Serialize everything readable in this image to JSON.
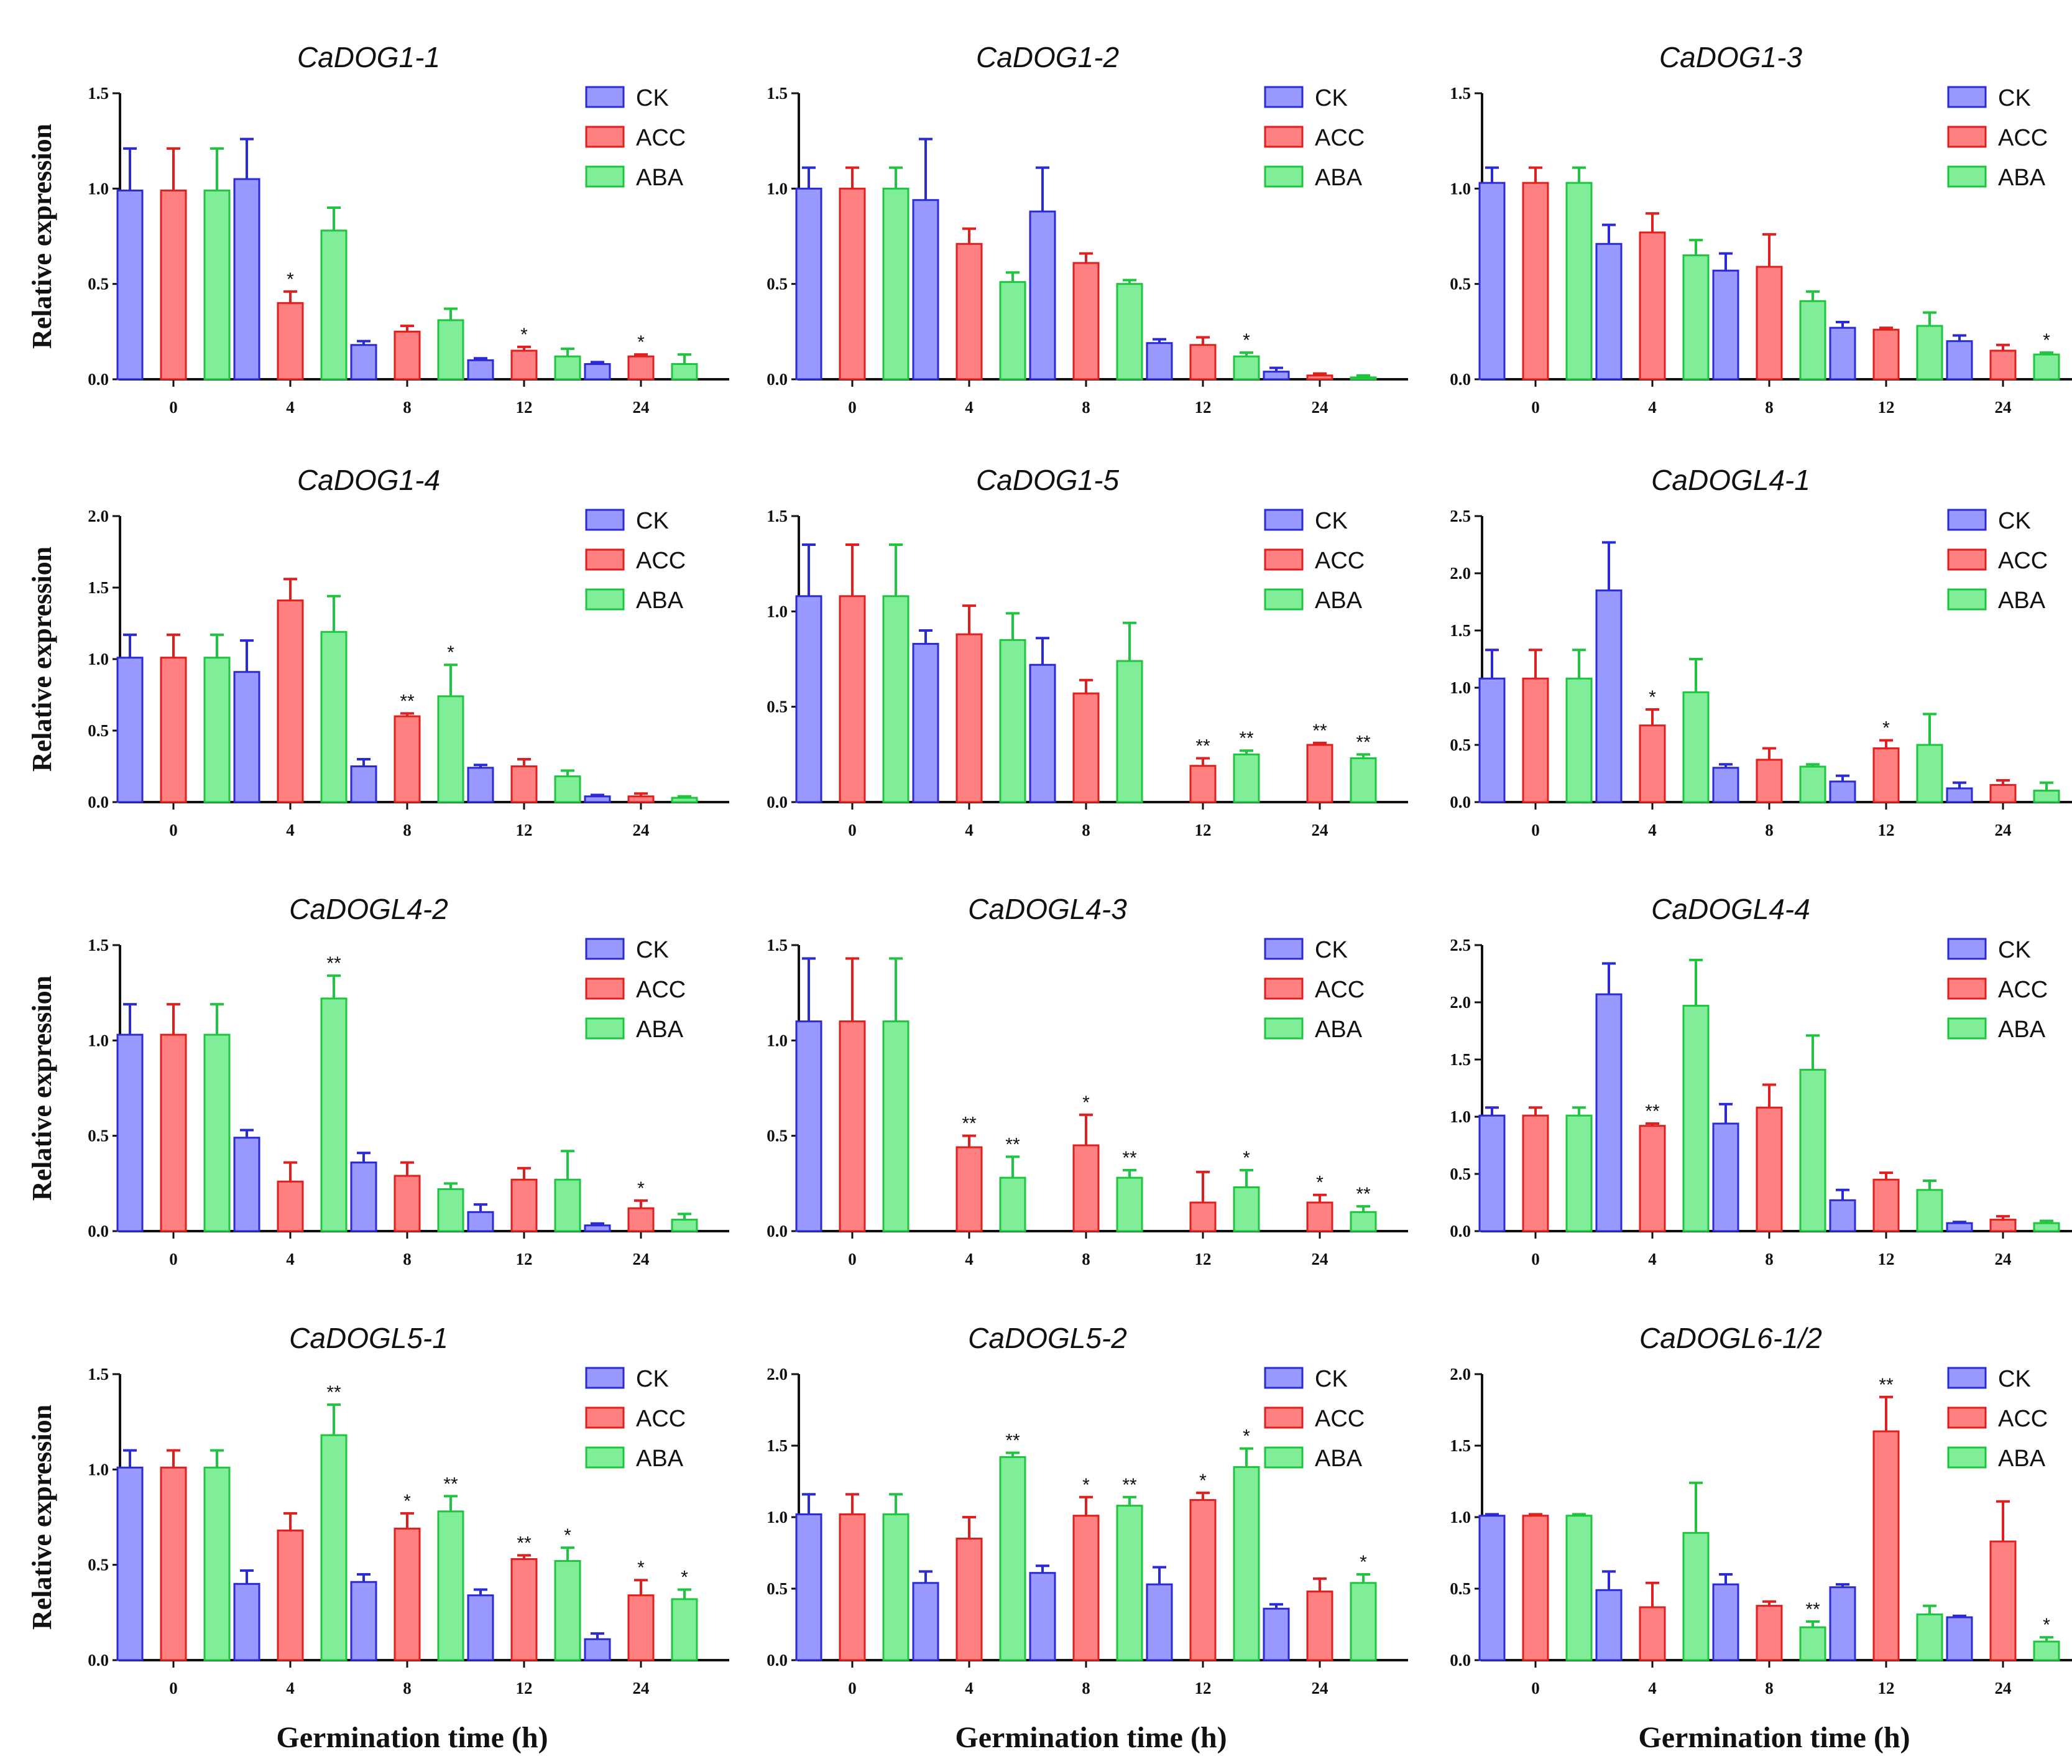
{
  "legend": [
    "CK",
    "ACC",
    "ABA"
  ],
  "colors": {
    "CK_fill": "#9999ff",
    "CK_stroke": "#2b2bd6",
    "ACC_fill": "#ff8080",
    "ACC_stroke": "#e01f1f",
    "ABA_fill": "#80ee99",
    "ABA_stroke": "#1fc43f"
  },
  "ylabel": "Relative expression",
  "xlabel": "Germination time (h)",
  "chart_data": [
    {
      "type": "bar",
      "title": "CaDOG1-1",
      "categories": [
        "0",
        "4",
        "8",
        "12",
        "24"
      ],
      "ylim": [
        0,
        1.5
      ],
      "yticks": [
        "0.0",
        "0.5",
        "1.0",
        "1.5"
      ],
      "series": [
        {
          "name": "CK",
          "values": [
            0.99,
            1.05,
            0.18,
            0.1,
            0.08
          ],
          "errors": [
            0.22,
            0.21,
            0.02,
            0.01,
            0.01
          ],
          "sig": [
            "",
            "",
            "",
            "",
            ""
          ]
        },
        {
          "name": "ACC",
          "values": [
            0.99,
            0.4,
            0.25,
            0.15,
            0.12
          ],
          "errors": [
            0.22,
            0.06,
            0.03,
            0.02,
            0.01
          ],
          "sig": [
            "",
            "*",
            "",
            "*",
            "*"
          ]
        },
        {
          "name": "ABA",
          "values": [
            0.99,
            0.78,
            0.31,
            0.12,
            0.08
          ],
          "errors": [
            0.22,
            0.12,
            0.06,
            0.04,
            0.05
          ],
          "sig": [
            "",
            "",
            "",
            "",
            ""
          ]
        }
      ]
    },
    {
      "type": "bar",
      "title": "CaDOG1-2",
      "categories": [
        "0",
        "4",
        "8",
        "12",
        "24"
      ],
      "ylim": [
        0,
        1.5
      ],
      "yticks": [
        "0.0",
        "0.5",
        "1.0",
        "1.5"
      ],
      "series": [
        {
          "name": "CK",
          "values": [
            1.0,
            0.94,
            0.88,
            0.19,
            0.04
          ],
          "errors": [
            0.11,
            0.32,
            0.23,
            0.02,
            0.02
          ],
          "sig": [
            "",
            "",
            "",
            "",
            ""
          ]
        },
        {
          "name": "ACC",
          "values": [
            1.0,
            0.71,
            0.61,
            0.18,
            0.02
          ],
          "errors": [
            0.11,
            0.08,
            0.05,
            0.04,
            0.01
          ],
          "sig": [
            "",
            "",
            "",
            "",
            ""
          ]
        },
        {
          "name": "ABA",
          "values": [
            1.0,
            0.51,
            0.5,
            0.12,
            0.01
          ],
          "errors": [
            0.11,
            0.05,
            0.02,
            0.02,
            0.01
          ],
          "sig": [
            "",
            "",
            "",
            "*",
            ""
          ]
        }
      ]
    },
    {
      "type": "bar",
      "title": "CaDOG1-3",
      "categories": [
        "0",
        "4",
        "8",
        "12",
        "24"
      ],
      "ylim": [
        0,
        1.5
      ],
      "yticks": [
        "0.0",
        "0.5",
        "1.0",
        "1.5"
      ],
      "series": [
        {
          "name": "CK",
          "values": [
            1.03,
            0.71,
            0.57,
            0.27,
            0.2
          ],
          "errors": [
            0.08,
            0.1,
            0.09,
            0.03,
            0.03
          ],
          "sig": [
            "",
            "",
            "",
            "",
            ""
          ]
        },
        {
          "name": "ACC",
          "values": [
            1.03,
            0.77,
            0.59,
            0.26,
            0.15
          ],
          "errors": [
            0.08,
            0.1,
            0.17,
            0.01,
            0.03
          ],
          "sig": [
            "",
            "",
            "",
            "",
            ""
          ]
        },
        {
          "name": "ABA",
          "values": [
            1.03,
            0.65,
            0.41,
            0.28,
            0.13
          ],
          "errors": [
            0.08,
            0.08,
            0.05,
            0.07,
            0.01
          ],
          "sig": [
            "",
            "",
            "",
            "",
            "*"
          ]
        }
      ]
    },
    {
      "type": "bar",
      "title": "CaDOG1-4",
      "categories": [
        "0",
        "4",
        "8",
        "12",
        "24"
      ],
      "ylim": [
        0,
        2.0
      ],
      "yticks": [
        "0.0",
        "0.5",
        "1.0",
        "1.5",
        "2.0"
      ],
      "series": [
        {
          "name": "CK",
          "values": [
            1.01,
            0.91,
            0.25,
            0.24,
            0.04
          ],
          "errors": [
            0.16,
            0.22,
            0.05,
            0.02,
            0.01
          ],
          "sig": [
            "",
            "",
            "",
            "",
            ""
          ]
        },
        {
          "name": "ACC",
          "values": [
            1.01,
            1.41,
            0.6,
            0.25,
            0.04
          ],
          "errors": [
            0.16,
            0.15,
            0.02,
            0.05,
            0.02
          ],
          "sig": [
            "",
            "",
            "**",
            "",
            ""
          ]
        },
        {
          "name": "ABA",
          "values": [
            1.01,
            1.19,
            0.74,
            0.18,
            0.03
          ],
          "errors": [
            0.16,
            0.25,
            0.22,
            0.04,
            0.01
          ],
          "sig": [
            "",
            "",
            "*",
            "",
            ""
          ]
        }
      ]
    },
    {
      "type": "bar",
      "title": "CaDOG1-5",
      "categories": [
        "0",
        "4",
        "8",
        "12",
        "24"
      ],
      "ylim": [
        0,
        1.5
      ],
      "yticks": [
        "0.0",
        "0.5",
        "1.0",
        "1.5"
      ],
      "series": [
        {
          "name": "CK",
          "values": [
            1.08,
            0.83,
            0.72,
            0.0,
            0.0
          ],
          "errors": [
            0.27,
            0.07,
            0.14,
            0.0,
            0.0
          ],
          "sig": [
            "",
            "",
            "",
            "",
            ""
          ]
        },
        {
          "name": "ACC",
          "values": [
            1.08,
            0.88,
            0.57,
            0.19,
            0.3
          ],
          "errors": [
            0.27,
            0.15,
            0.07,
            0.04,
            0.01
          ],
          "sig": [
            "",
            "",
            "",
            "**",
            "**"
          ]
        },
        {
          "name": "ABA",
          "values": [
            1.08,
            0.85,
            0.74,
            0.25,
            0.23
          ],
          "errors": [
            0.27,
            0.14,
            0.2,
            0.02,
            0.02
          ],
          "sig": [
            "",
            "",
            "",
            "**",
            "**"
          ]
        }
      ]
    },
    {
      "type": "bar",
      "title": "CaDOGL4-1",
      "categories": [
        "0",
        "4",
        "8",
        "12",
        "24"
      ],
      "ylim": [
        0,
        2.5
      ],
      "yticks": [
        "0.0",
        "0.5",
        "1.0",
        "1.5",
        "2.0",
        "2.5"
      ],
      "series": [
        {
          "name": "CK",
          "values": [
            1.08,
            1.85,
            0.3,
            0.18,
            0.12
          ],
          "errors": [
            0.25,
            0.42,
            0.03,
            0.05,
            0.05
          ],
          "sig": [
            "",
            "",
            "",
            "",
            ""
          ]
        },
        {
          "name": "ACC",
          "values": [
            1.08,
            0.67,
            0.37,
            0.47,
            0.15
          ],
          "errors": [
            0.25,
            0.14,
            0.1,
            0.07,
            0.04
          ],
          "sig": [
            "",
            "*",
            "",
            "*",
            ""
          ]
        },
        {
          "name": "ABA",
          "values": [
            1.08,
            0.96,
            0.31,
            0.5,
            0.1
          ],
          "errors": [
            0.25,
            0.29,
            0.02,
            0.27,
            0.07
          ],
          "sig": [
            "",
            "",
            "",
            "",
            ""
          ]
        }
      ]
    },
    {
      "type": "bar",
      "title": "CaDOGL4-2",
      "categories": [
        "0",
        "4",
        "8",
        "12",
        "24"
      ],
      "ylim": [
        0,
        1.5
      ],
      "yticks": [
        "0.0",
        "0.5",
        "1.0",
        "1.5"
      ],
      "series": [
        {
          "name": "CK",
          "values": [
            1.03,
            0.49,
            0.36,
            0.1,
            0.03
          ],
          "errors": [
            0.16,
            0.04,
            0.05,
            0.04,
            0.01
          ],
          "sig": [
            "",
            "",
            "",
            "",
            ""
          ]
        },
        {
          "name": "ACC",
          "values": [
            1.03,
            0.26,
            0.29,
            0.27,
            0.12
          ],
          "errors": [
            0.16,
            0.1,
            0.07,
            0.06,
            0.04
          ],
          "sig": [
            "",
            "",
            "",
            "",
            "*"
          ]
        },
        {
          "name": "ABA",
          "values": [
            1.03,
            1.22,
            0.22,
            0.27,
            0.06
          ],
          "errors": [
            0.16,
            0.12,
            0.03,
            0.15,
            0.03
          ],
          "sig": [
            "",
            "**",
            "",
            "",
            ""
          ]
        }
      ]
    },
    {
      "type": "bar",
      "title": "CaDOGL4-3",
      "categories": [
        "0",
        "4",
        "8",
        "12",
        "24"
      ],
      "ylim": [
        0,
        1.5
      ],
      "yticks": [
        "0.0",
        "0.5",
        "1.0",
        "1.5"
      ],
      "series": [
        {
          "name": "CK",
          "values": [
            1.1,
            0.0,
            0.0,
            0.0,
            0.0
          ],
          "errors": [
            0.33,
            0.0,
            0.0,
            0.0,
            0.0
          ],
          "sig": [
            "",
            "",
            "",
            "",
            ""
          ]
        },
        {
          "name": "ACC",
          "values": [
            1.1,
            0.44,
            0.45,
            0.15,
            0.15
          ],
          "errors": [
            0.33,
            0.06,
            0.16,
            0.16,
            0.04
          ],
          "sig": [
            "",
            "**",
            "*",
            "",
            "*"
          ]
        },
        {
          "name": "ABA",
          "values": [
            1.1,
            0.28,
            0.28,
            0.23,
            0.1
          ],
          "errors": [
            0.33,
            0.11,
            0.04,
            0.09,
            0.03
          ],
          "sig": [
            "",
            "**",
            "**",
            "*",
            "**"
          ]
        }
      ]
    },
    {
      "type": "bar",
      "title": "CaDOGL4-4",
      "categories": [
        "0",
        "4",
        "8",
        "12",
        "24"
      ],
      "ylim": [
        0,
        2.5
      ],
      "yticks": [
        "0.0",
        "0.5",
        "1.0",
        "1.5",
        "2.0",
        "2.5"
      ],
      "series": [
        {
          "name": "CK",
          "values": [
            1.01,
            2.07,
            0.94,
            0.27,
            0.07
          ],
          "errors": [
            0.07,
            0.27,
            0.17,
            0.09,
            0.01
          ],
          "sig": [
            "",
            "",
            "",
            "",
            ""
          ]
        },
        {
          "name": "ACC",
          "values": [
            1.01,
            0.92,
            1.08,
            0.45,
            0.1
          ],
          "errors": [
            0.07,
            0.02,
            0.2,
            0.06,
            0.03
          ],
          "sig": [
            "",
            "**",
            "",
            "",
            ""
          ]
        },
        {
          "name": "ABA",
          "values": [
            1.01,
            1.97,
            1.41,
            0.36,
            0.07
          ],
          "errors": [
            0.07,
            0.4,
            0.3,
            0.08,
            0.02
          ],
          "sig": [
            "",
            "",
            "",
            "",
            ""
          ]
        }
      ]
    },
    {
      "type": "bar",
      "title": "CaDOGL5-1",
      "categories": [
        "0",
        "4",
        "8",
        "12",
        "24"
      ],
      "ylim": [
        0,
        1.5
      ],
      "yticks": [
        "0.0",
        "0.5",
        "1.0",
        "1.5"
      ],
      "series": [
        {
          "name": "CK",
          "values": [
            1.01,
            0.4,
            0.41,
            0.34,
            0.11
          ],
          "errors": [
            0.09,
            0.07,
            0.04,
            0.03,
            0.03
          ],
          "sig": [
            "",
            "",
            "",
            "",
            ""
          ]
        },
        {
          "name": "ACC",
          "values": [
            1.01,
            0.68,
            0.69,
            0.53,
            0.34
          ],
          "errors": [
            0.09,
            0.09,
            0.08,
            0.02,
            0.08
          ],
          "sig": [
            "",
            "",
            "*",
            "**",
            "*"
          ]
        },
        {
          "name": "ABA",
          "values": [
            1.01,
            1.18,
            0.78,
            0.52,
            0.32
          ],
          "errors": [
            0.09,
            0.16,
            0.08,
            0.07,
            0.05
          ],
          "sig": [
            "",
            "**",
            "**",
            "*",
            "*"
          ]
        }
      ]
    },
    {
      "type": "bar",
      "title": "CaDOGL5-2",
      "categories": [
        "0",
        "4",
        "8",
        "12",
        "24"
      ],
      "ylim": [
        0,
        2.0
      ],
      "yticks": [
        "0.0",
        "0.5",
        "1.0",
        "1.5",
        "2.0"
      ],
      "series": [
        {
          "name": "CK",
          "values": [
            1.02,
            0.54,
            0.61,
            0.53,
            0.36
          ],
          "errors": [
            0.14,
            0.08,
            0.05,
            0.12,
            0.03
          ],
          "sig": [
            "",
            "",
            "",
            "",
            ""
          ]
        },
        {
          "name": "ACC",
          "values": [
            1.02,
            0.85,
            1.01,
            1.12,
            0.48
          ],
          "errors": [
            0.14,
            0.15,
            0.13,
            0.05,
            0.09
          ],
          "sig": [
            "",
            "",
            "*",
            "*",
            ""
          ]
        },
        {
          "name": "ABA",
          "values": [
            1.02,
            1.42,
            1.08,
            1.35,
            0.54
          ],
          "errors": [
            0.14,
            0.03,
            0.06,
            0.13,
            0.06
          ],
          "sig": [
            "",
            "**",
            "**",
            "*",
            "*"
          ]
        }
      ]
    },
    {
      "type": "bar",
      "title": "CaDOGL6-1/2",
      "categories": [
        "0",
        "4",
        "8",
        "12",
        "24"
      ],
      "ylim": [
        0,
        2.0
      ],
      "yticks": [
        "0.0",
        "0.5",
        "1.0",
        "1.5",
        "2.0"
      ],
      "series": [
        {
          "name": "CK",
          "values": [
            1.01,
            0.49,
            0.53,
            0.51,
            0.3
          ],
          "errors": [
            0.01,
            0.13,
            0.07,
            0.02,
            0.01
          ],
          "sig": [
            "",
            "",
            "",
            "",
            ""
          ]
        },
        {
          "name": "ACC",
          "values": [
            1.01,
            0.37,
            0.38,
            1.6,
            0.83
          ],
          "errors": [
            0.01,
            0.17,
            0.03,
            0.24,
            0.28
          ],
          "sig": [
            "",
            "",
            "",
            "**",
            ""
          ]
        },
        {
          "name": "ABA",
          "values": [
            1.01,
            0.89,
            0.23,
            0.32,
            0.13
          ],
          "errors": [
            0.01,
            0.35,
            0.04,
            0.06,
            0.03
          ],
          "sig": [
            "",
            "",
            "**",
            "",
            "*"
          ]
        }
      ]
    }
  ]
}
